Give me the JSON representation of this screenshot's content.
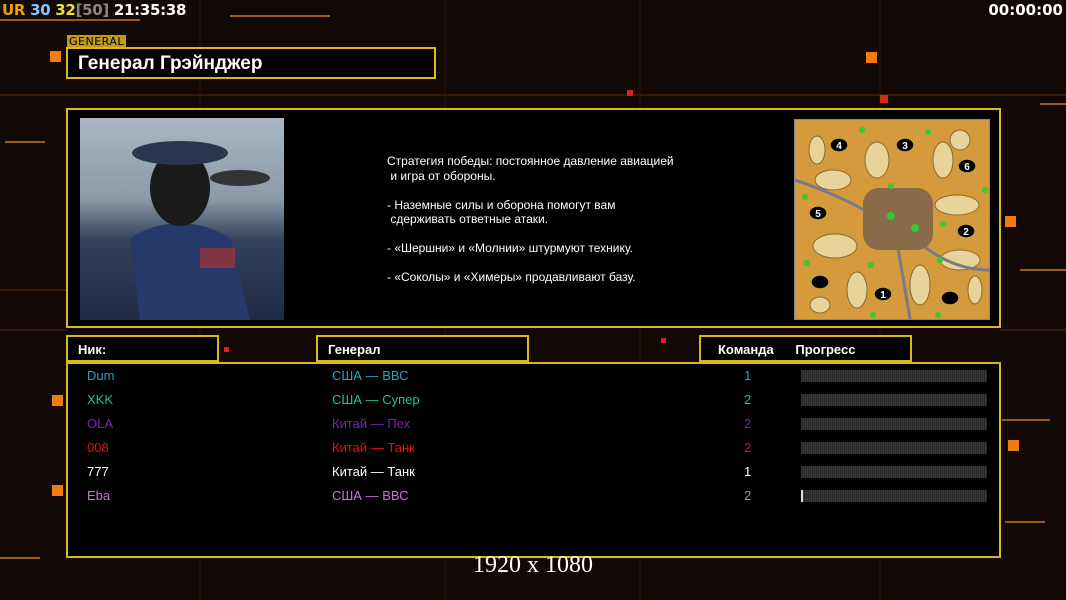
{
  "hud": {
    "ur": "UR",
    "fps": "30",
    "value_a": "32",
    "bracket_value": "[50]",
    "clock": "21:35:38",
    "timer": "00:00:00"
  },
  "header": {
    "tag": "GENERAL",
    "title": "Генерал Грэйнджер"
  },
  "description": "Стратегия победы: постоянное давление авиацией\n и игра от обороны.\n\n- Наземные силы и оборона помогут вам\n сдерживать ответные атаки.\n\n- «Шершни» и «Молнии» штурмуют технику.\n\n- «Соколы» и «Химеры» продавливают базу.",
  "map": {
    "start_positions": [
      "1",
      "2",
      "3",
      "4",
      "5",
      "6"
    ]
  },
  "columns": {
    "nick": "Ник:",
    "general": "Генерал",
    "team": "Команда",
    "progress": "Прогресс"
  },
  "players": [
    {
      "nick": "Dum",
      "general": "США — ВВС",
      "team": "1",
      "progress": 0,
      "color": "#27a3c9"
    },
    {
      "nick": "XKK",
      "general": "США — Супер",
      "team": "2",
      "progress": 0,
      "color": "#1fc389"
    },
    {
      "nick": "OLA",
      "general": "Китай — Пех",
      "team": "2",
      "progress": 0,
      "color": "#7d22b8"
    },
    {
      "nick": "008",
      "general": "Китай — Танк",
      "team": "2",
      "progress": 0,
      "color": "#e41313"
    },
    {
      "nick": "777",
      "general": "Китай — Танк",
      "team": "1",
      "progress": 0,
      "color": "#ffffff"
    },
    {
      "nick": "Eba",
      "general": "США — ВВС",
      "team": "2",
      "progress": 1,
      "color": "#c774d6"
    }
  ],
  "resolution": "1920 x 1080"
}
